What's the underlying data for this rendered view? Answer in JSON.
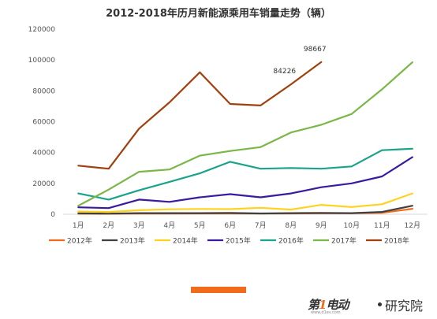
{
  "chart_data": {
    "type": "line",
    "title": "2012-2018年历月新能源乘用车销量走势（辆）",
    "xlabel": "",
    "ylabel": "",
    "categories": [
      "1月",
      "2月",
      "3月",
      "4月",
      "5月",
      "6月",
      "7月",
      "8月",
      "9月",
      "10月",
      "11月",
      "12月"
    ],
    "ylim": [
      0,
      120000
    ],
    "yticks": [
      0,
      20000,
      40000,
      60000,
      80000,
      100000,
      120000
    ],
    "grid": false,
    "legend_position": "bottom",
    "series": [
      {
        "name": "2012年",
        "color": "#f26b1d",
        "values": [
          300,
          300,
          400,
          400,
          500,
          500,
          400,
          500,
          600,
          700,
          900,
          3500
        ]
      },
      {
        "name": "2013年",
        "color": "#404040",
        "values": [
          600,
          400,
          700,
          700,
          700,
          800,
          500,
          700,
          800,
          700,
          1500,
          5500
        ]
      },
      {
        "name": "2014年",
        "color": "#ffd21f",
        "values": [
          1800,
          1500,
          2600,
          3200,
          3400,
          3300,
          4200,
          3000,
          6100,
          4700,
          6500,
          13500
        ]
      },
      {
        "name": "2015年",
        "color": "#3a1a9e",
        "values": [
          4500,
          4000,
          9500,
          8000,
          11000,
          13000,
          11000,
          13500,
          17500,
          20000,
          24500,
          37000
        ]
      },
      {
        "name": "2016年",
        "color": "#1aa38a",
        "values": [
          13500,
          9500,
          15500,
          21000,
          26500,
          34000,
          29500,
          30000,
          29500,
          31000,
          41500,
          42500
        ]
      },
      {
        "name": "2017年",
        "color": "#7ab648",
        "values": [
          5500,
          16000,
          27500,
          29000,
          38000,
          41000,
          43500,
          53000,
          58000,
          65000,
          81000,
          98500
        ]
      },
      {
        "name": "2018年",
        "color": "#a0410d",
        "values": [
          31500,
          29500,
          55500,
          72500,
          92000,
          71500,
          70500,
          84226,
          98667,
          null,
          null,
          null
        ]
      }
    ],
    "annotations": [
      {
        "series": "2018年",
        "index": 7,
        "text": "84226"
      },
      {
        "series": "2018年",
        "index": 8,
        "text": "98667"
      }
    ]
  },
  "footer": {
    "brand_mark_a": "第",
    "brand_mark_num": "1",
    "brand_mark_b": "电动",
    "brand_name": "研究院",
    "brand_url": "www.d1ev.com",
    "accent_color": "#f26b1d"
  }
}
